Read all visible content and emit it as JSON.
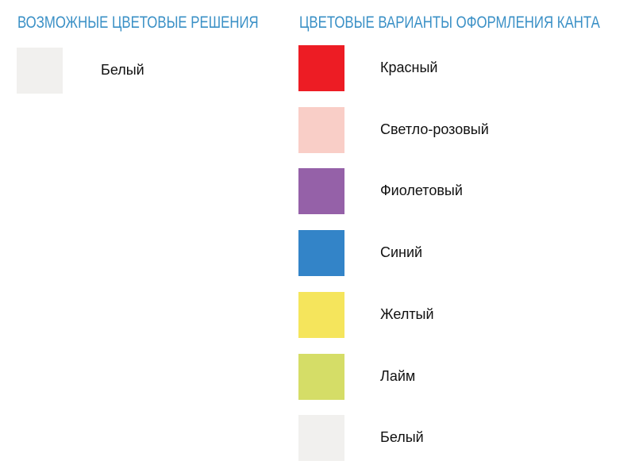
{
  "left": {
    "heading": "ВОЗМОЖНЫЕ ЦВЕТОВЫЕ РЕШЕНИЯ",
    "items": [
      {
        "label": "Белый",
        "color": "#f1f0ee"
      }
    ]
  },
  "right": {
    "heading": "ЦВЕТОВЫЕ ВАРИАНТЫ ОФОРМЛЕНИЯ КАНТА",
    "items": [
      {
        "label": "Красный",
        "color": "#ed1c24"
      },
      {
        "label": "Светло-розовый",
        "color": "#f9cec7"
      },
      {
        "label": "Фиолетовый",
        "color": "#9561a8"
      },
      {
        "label": "Синий",
        "color": "#3384c8"
      },
      {
        "label": "Желтый",
        "color": "#f5e55c"
      },
      {
        "label": "Лайм",
        "color": "#d5dd67"
      },
      {
        "label": "Белый",
        "color": "#f1f0ee"
      }
    ]
  }
}
